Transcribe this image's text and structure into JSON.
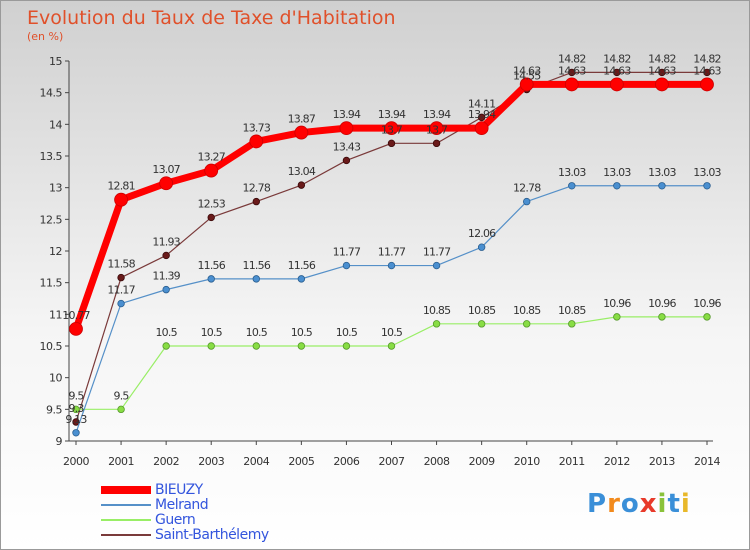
{
  "header": {
    "title": "Evolution du Taux de Taxe d'Habitation",
    "subtitle": "(en %)"
  },
  "logo": {
    "text": "Proxiti"
  },
  "chart_data": {
    "type": "line",
    "title": "Evolution du Taux de Taxe d'Habitation",
    "ylabel": "(en %)",
    "xlabel": "",
    "x": [
      2000,
      2001,
      2002,
      2003,
      2004,
      2005,
      2006,
      2007,
      2008,
      2009,
      2010,
      2011,
      2012,
      2013,
      2014
    ],
    "ylim": [
      9,
      15
    ],
    "yticks": [
      9,
      9.5,
      10,
      10.5,
      11,
      11.5,
      12,
      12.5,
      13,
      13.5,
      14,
      14.5,
      15
    ],
    "grid": false,
    "legend_position": "bottom-left",
    "series": [
      {
        "name": "BIEUZY",
        "color": "#ff0000",
        "values": [
          10.77,
          12.81,
          13.07,
          13.27,
          13.73,
          13.87,
          13.94,
          13.94,
          13.94,
          13.94,
          14.63,
          14.63,
          14.63,
          14.63,
          14.63
        ],
        "labels": [
          "10.77",
          "12.81",
          "13.07",
          "13.27",
          "13.73",
          "13.87",
          "13.94",
          "13.94",
          "13.94",
          "13.94",
          "14.63",
          "14.63",
          "14.63",
          "14.63",
          "14.63"
        ]
      },
      {
        "name": "Melrand",
        "color": "#5590c8",
        "values": [
          9.13,
          11.17,
          11.39,
          11.56,
          11.56,
          11.56,
          11.77,
          11.77,
          11.77,
          12.06,
          12.78,
          13.03,
          13.03,
          13.03,
          13.03
        ],
        "labels": [
          "9.13",
          "11.17",
          "11.39",
          "11.56",
          "11.56",
          "11.56",
          "11.77",
          "11.77",
          "11.77",
          "12.06",
          "12.78",
          "13.03",
          "13.03",
          "13.03",
          "13.03"
        ]
      },
      {
        "name": "Guern",
        "color": "#88dd55",
        "values": [
          9.5,
          9.5,
          10.5,
          10.5,
          10.5,
          10.5,
          10.5,
          10.5,
          10.85,
          10.85,
          10.85,
          10.85,
          10.96,
          10.96,
          10.96
        ],
        "labels": [
          "9.5",
          "9.5",
          "10.5",
          "10.5",
          "10.5",
          "10.5",
          "10.5",
          "10.5",
          "10.85",
          "10.85",
          "10.85",
          "10.85",
          "10.96",
          "10.96",
          "10.96"
        ]
      },
      {
        "name": "Saint-Barthélemy",
        "color": "#7a2a2a",
        "values": [
          9.3,
          11.58,
          11.93,
          12.53,
          12.78,
          13.04,
          13.43,
          13.7,
          13.7,
          14.11,
          14.55,
          14.82,
          14.82,
          14.82,
          14.82
        ],
        "labels": [
          "9.3",
          "11.58",
          "11.93",
          "12.53",
          "12.78",
          "13.04",
          "13.43",
          "13.7",
          "13.7",
          "14.11",
          "14.55",
          "14.82",
          "14.82",
          "14.82",
          "14.82"
        ]
      }
    ]
  }
}
